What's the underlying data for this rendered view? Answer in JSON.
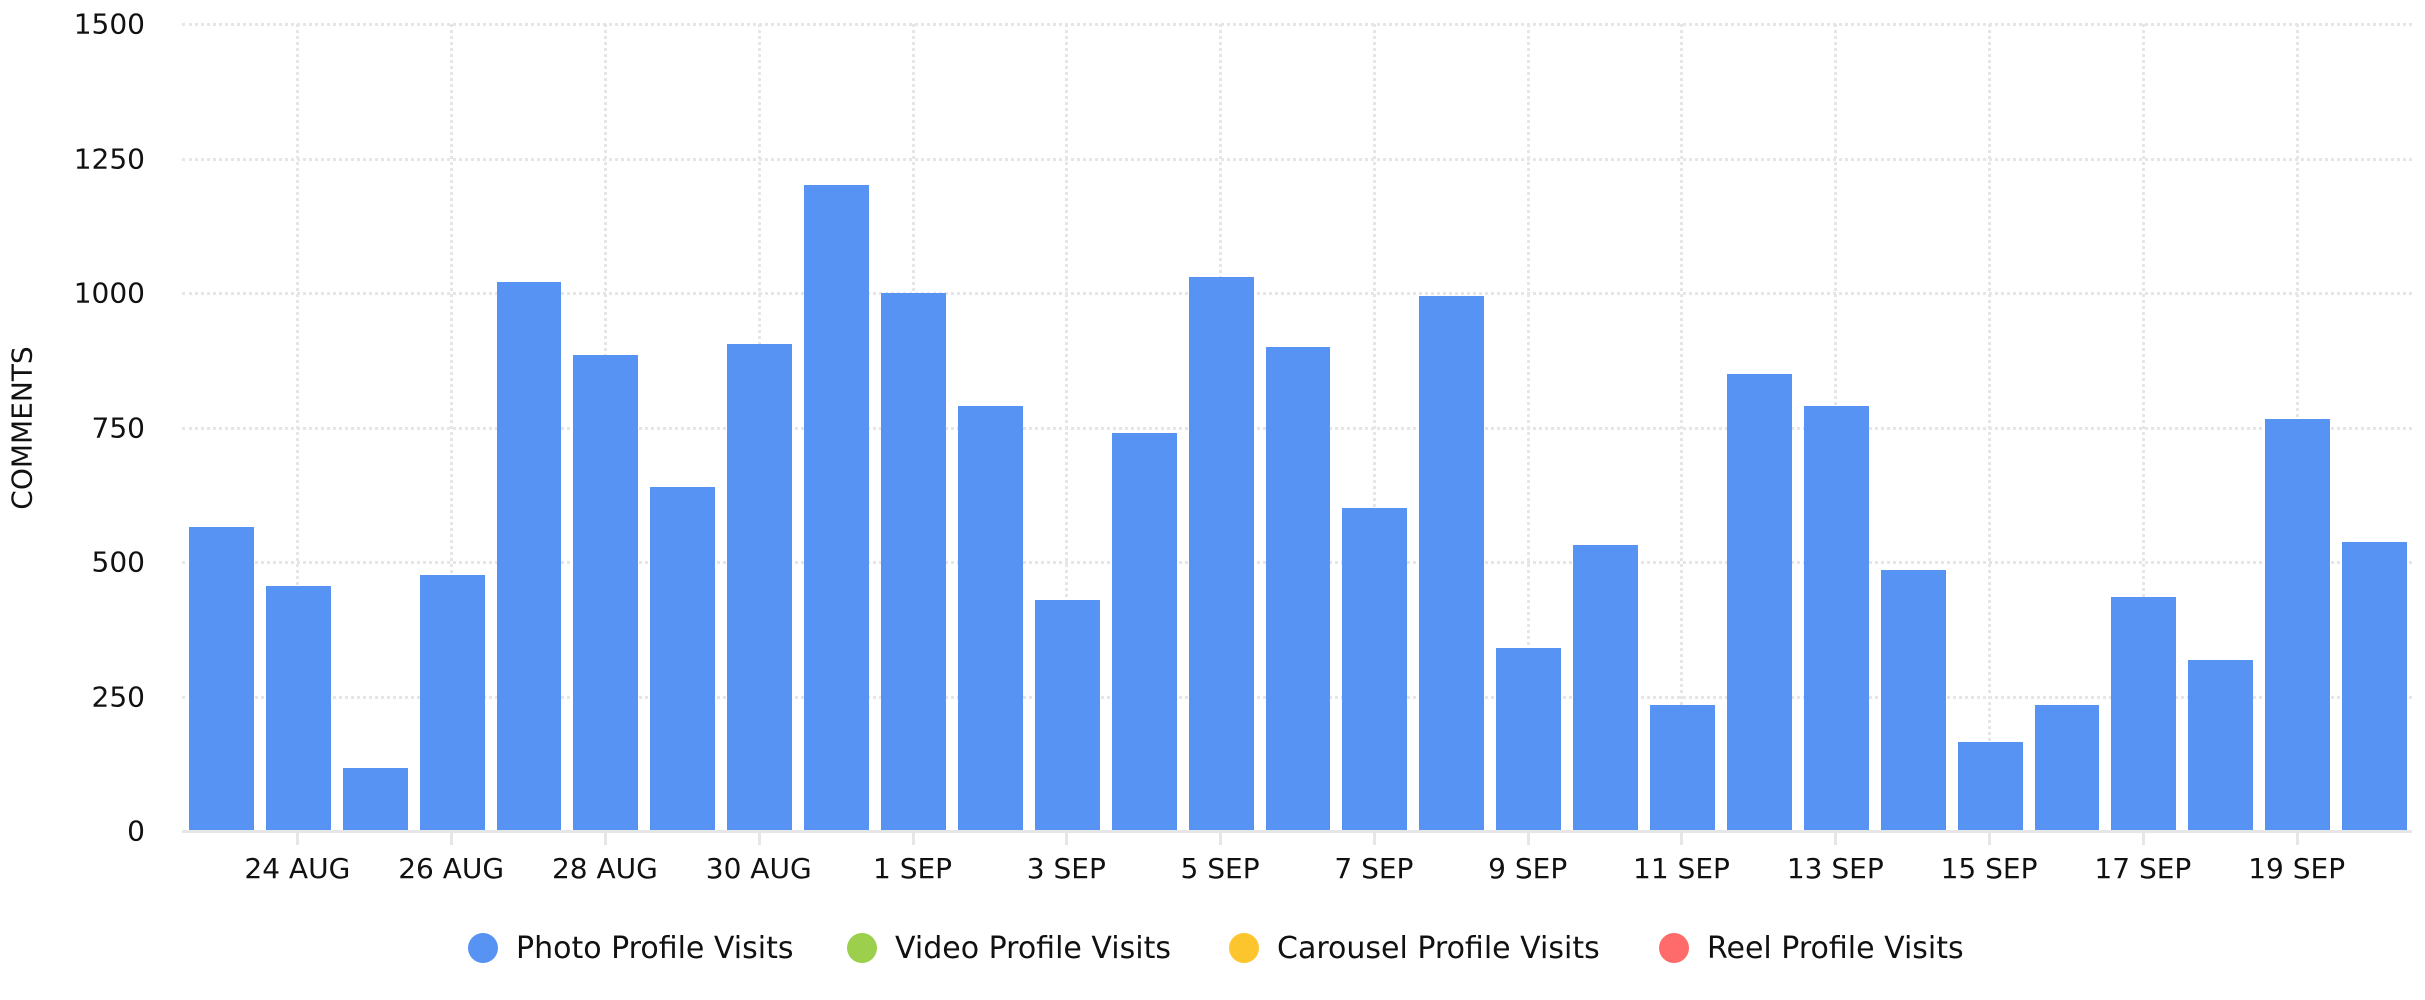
{
  "chart_data": {
    "type": "bar",
    "title": "",
    "xlabel": "",
    "ylabel": "COMMENTS",
    "ylim": [
      0,
      1500
    ],
    "yticks": [
      0,
      250,
      500,
      750,
      1000,
      1250,
      1500
    ],
    "grid": true,
    "legend_position": "bottom",
    "categories": [
      "23 AUG",
      "24 AUG",
      "25 AUG",
      "26 AUG",
      "27 AUG",
      "28 AUG",
      "29 AUG",
      "30 AUG",
      "31 AUG",
      "1 SEP",
      "2 SEP",
      "3 SEP",
      "4 SEP",
      "5 SEP",
      "6 SEP",
      "7 SEP",
      "8 SEP",
      "9 SEP",
      "10 SEP",
      "11 SEP",
      "12 SEP",
      "13 SEP",
      "14 SEP",
      "15 SEP",
      "16 SEP",
      "17 SEP",
      "18 SEP",
      "19 SEP",
      "20 SEP"
    ],
    "xtick_labels": [
      "24 AUG",
      "26 AUG",
      "28 AUG",
      "30 AUG",
      "1 SEP",
      "3 SEP",
      "5 SEP",
      "7 SEP",
      "9 SEP",
      "11 SEP",
      "13 SEP",
      "15 SEP",
      "17 SEP",
      "19 SEP"
    ],
    "series": [
      {
        "name": "Photo Profile Visits",
        "color": "#5793f3",
        "values": [
          565,
          455,
          118,
          475,
          1020,
          885,
          640,
          905,
          1200,
          1000,
          790,
          430,
          740,
          1030,
          900,
          600,
          995,
          340,
          532,
          235,
          850,
          790,
          485,
          165,
          235,
          435,
          318,
          765,
          537
        ]
      },
      {
        "name": "Video Profile Visits",
        "color": "#9bcf4c",
        "values": []
      },
      {
        "name": "Carousel Profile Visits",
        "color": "#fcc52e",
        "values": []
      },
      {
        "name": "Reel Profile Visits",
        "color": "#ff6b6b",
        "values": []
      }
    ]
  },
  "legend": {
    "items": [
      {
        "label": "Photo Profile Visits",
        "color": "#5793f3"
      },
      {
        "label": "Video Profile Visits",
        "color": "#9bcf4c"
      },
      {
        "label": "Carousel Profile Visits",
        "color": "#fcc52e"
      },
      {
        "label": "Reel Profile Visits",
        "color": "#ff6b6b"
      }
    ]
  },
  "axis": {
    "y_title": "COMMENTS"
  }
}
